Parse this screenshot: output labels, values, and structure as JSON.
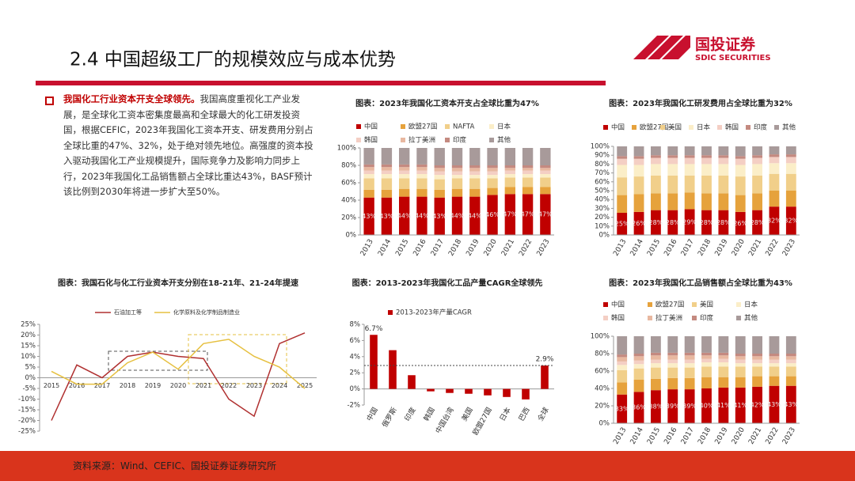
{
  "header": {
    "title": "2.4 中国超级工厂的规模效应与成本优势",
    "logo_cn": "国投证券",
    "logo_en": "SDIC SECURITIES"
  },
  "bullet": {
    "lead": "我国化工行业资本开支全球领先。",
    "text": "我国高度重视化工产业发展，是全球化工资本密集度最高和全球最大的化工研发投资国，根据CEFIC，2023年我国化工资本开支、研发费用分别占全球比重的47%、32%，处于绝对领先地位。高强度的资本投入驱动我国化工产业规模提升，国际竞争力及影响力同步上行，2023年我国化工品销售额占全球比重达43%，BASF预计该比例到2030年将进一步扩大至50%。"
  },
  "source": "资料来源：Wind、CEFIC、国投证券证券研究所",
  "chart_data": [
    {
      "type": "stacked_bar",
      "title": "图表：2023年我国化工资本开支占全球比重为47%",
      "categories": [
        "2013",
        "2014",
        "2015",
        "2016",
        "2017",
        "2018",
        "2019",
        "2020",
        "2021",
        "2022",
        "2023"
      ],
      "series": [
        {
          "name": "中国",
          "color": "#c00000",
          "values": [
            43,
            43,
            44,
            44,
            43,
            44,
            44,
            46,
            47,
            47,
            47
          ],
          "value_labels": [
            "43%",
            "43%",
            "44%",
            "44%",
            "43%",
            "44%",
            "44%",
            "46%",
            "47%",
            "47%",
            "47%"
          ]
        },
        {
          "name": "欧盟27国",
          "color": "#e6a23c",
          "values": [
            9,
            9,
            9,
            9,
            9,
            9,
            9,
            8,
            8,
            8,
            8
          ]
        },
        {
          "name": "NAFTA",
          "color": "#f1cf8a",
          "values": [
            13,
            13,
            12,
            12,
            12,
            12,
            12,
            11,
            11,
            11,
            11
          ]
        },
        {
          "name": "日本",
          "color": "#fbeec8",
          "values": [
            5,
            5,
            5,
            5,
            5,
            4,
            4,
            4,
            4,
            4,
            4
          ]
        },
        {
          "name": "韩国",
          "color": "#f4cfc4",
          "values": [
            4,
            4,
            4,
            4,
            4,
            4,
            4,
            4,
            4,
            4,
            4
          ]
        },
        {
          "name": "拉丁美洲",
          "color": "#e8b8a0",
          "values": [
            4,
            4,
            4,
            4,
            4,
            4,
            4,
            4,
            3,
            3,
            3
          ]
        },
        {
          "name": "印度",
          "color": "#c48a80",
          "values": [
            3,
            3,
            3,
            3,
            3,
            3,
            3,
            3,
            3,
            3,
            3
          ]
        },
        {
          "name": "其他",
          "color": "#a89a9a",
          "values": [
            19,
            19,
            19,
            19,
            20,
            20,
            20,
            20,
            20,
            20,
            20
          ]
        }
      ],
      "ylim": [
        0,
        100
      ],
      "yticks": [
        {
          "value": 0,
          "label": "0%"
        },
        {
          "value": 20,
          "label": "20%"
        },
        {
          "value": 40,
          "label": "40%"
        },
        {
          "value": 60,
          "label": "60%"
        },
        {
          "value": 80,
          "label": "80%"
        },
        {
          "value": 100,
          "label": "100%"
        }
      ]
    },
    {
      "type": "stacked_bar",
      "title": "图表：2023年我国化工研发费用占全球比重为32%",
      "categories": [
        "2013",
        "2014",
        "2015",
        "2016",
        "2017",
        "2018",
        "2019",
        "2020",
        "2021",
        "2022",
        "2023"
      ],
      "series": [
        {
          "name": "中国",
          "color": "#c00000",
          "values": [
            25,
            26,
            28,
            28,
            29,
            28,
            28,
            26,
            28,
            32,
            32
          ],
          "value_labels": [
            "25%",
            "26%",
            "28%",
            "28%",
            "29%",
            "28%",
            "28%",
            "26%",
            "28%",
            "32%",
            "32%"
          ]
        },
        {
          "name": "欧盟27国",
          "color": "#e6a23c",
          "values": [
            20,
            20,
            19,
            19,
            19,
            19,
            19,
            19,
            19,
            18,
            18
          ]
        },
        {
          "name": "美国",
          "color": "#f1cf8a",
          "values": [
            20,
            20,
            20,
            20,
            19,
            20,
            20,
            21,
            20,
            19,
            19
          ]
        },
        {
          "name": "日本",
          "color": "#fbeec8",
          "values": [
            14,
            13,
            13,
            13,
            13,
            13,
            13,
            13,
            13,
            12,
            12
          ]
        },
        {
          "name": "韩国",
          "color": "#f4cfc4",
          "values": [
            7,
            7,
            7,
            7,
            7,
            7,
            7,
            7,
            7,
            7,
            7
          ]
        },
        {
          "name": "印度",
          "color": "#c48a80",
          "values": [
            3,
            3,
            3,
            3,
            3,
            3,
            3,
            3,
            3,
            3,
            3
          ]
        },
        {
          "name": "其他",
          "color": "#a89a9a",
          "values": [
            11,
            11,
            10,
            10,
            10,
            10,
            10,
            11,
            10,
            9,
            9
          ]
        }
      ],
      "ylim": [
        0,
        100
      ],
      "yticks": [
        {
          "value": 0,
          "label": "0%"
        },
        {
          "value": 10,
          "label": "10%"
        },
        {
          "value": 20,
          "label": "20%"
        },
        {
          "value": 30,
          "label": "30%"
        },
        {
          "value": 40,
          "label": "40%"
        },
        {
          "value": 50,
          "label": "50%"
        },
        {
          "value": 60,
          "label": "60%"
        },
        {
          "value": 70,
          "label": "70%"
        },
        {
          "value": 80,
          "label": "80%"
        },
        {
          "value": 90,
          "label": "90%"
        },
        {
          "value": 100,
          "label": "100%"
        }
      ]
    },
    {
      "type": "line",
      "title": "图表：我国石化与化工行业资本开支分别在18-21年、21-24年提速",
      "categories": [
        "2015",
        "2016",
        "2017",
        "2018",
        "2019",
        "2020",
        "2021",
        "2022",
        "2023",
        "2024",
        "2025"
      ],
      "series": [
        {
          "name": "石油加工等",
          "color": "#b03030",
          "values": [
            -20,
            6,
            0,
            10,
            12,
            10,
            9,
            -10,
            -18,
            16,
            21
          ]
        },
        {
          "name": "化学原料及化学制品制造业",
          "color": "#e6c040",
          "values": [
            3,
            -3,
            -3,
            7,
            12,
            4,
            16,
            18,
            10,
            5,
            -5
          ]
        }
      ],
      "ylim": [
        -25,
        25
      ],
      "yticks": [
        {
          "value": -25,
          "label": "-25%"
        },
        {
          "value": -20,
          "label": "-20%"
        },
        {
          "value": -15,
          "label": "-15%"
        },
        {
          "value": -10,
          "label": "-10%"
        },
        {
          "value": -5,
          "label": "-5%"
        },
        {
          "value": 0,
          "label": "0%"
        },
        {
          "value": 5,
          "label": "5%"
        },
        {
          "value": 10,
          "label": "10%"
        },
        {
          "value": 15,
          "label": "15%"
        },
        {
          "value": 20,
          "label": "20%"
        },
        {
          "value": 25,
          "label": "25%"
        }
      ]
    },
    {
      "type": "bar",
      "title": "图表：2013-2023年我国化工品产量CAGR全球领先",
      "categories": [
        "中国",
        "俄罗斯",
        "印度",
        "韩国",
        "中国台湾",
        "美国",
        "欧盟27国",
        "日本",
        "巴西",
        "全球"
      ],
      "series": [
        {
          "name": "2013-2023年产量CAGR",
          "color": "#c00000",
          "values": [
            6.7,
            4.8,
            1.7,
            -0.3,
            -0.5,
            -0.6,
            -0.8,
            -1.0,
            -1.3,
            2.9
          ],
          "value_labels": [
            "6.7%",
            null,
            null,
            null,
            null,
            null,
            null,
            null,
            null,
            "2.9%"
          ]
        }
      ],
      "ylim": [
        -2,
        8
      ],
      "yticks": [
        {
          "value": -2,
          "label": "-2%"
        },
        {
          "value": 0,
          "label": "0%"
        },
        {
          "value": 2,
          "label": "2%"
        },
        {
          "value": 4,
          "label": "4%"
        },
        {
          "value": 6,
          "label": "6%"
        },
        {
          "value": 8,
          "label": "8%"
        }
      ]
    },
    {
      "type": "stacked_bar",
      "title": "图表：2023年我国化工品销售额占全球比重为43%",
      "categories": [
        "2013",
        "2014",
        "2015",
        "2016",
        "2017",
        "2018",
        "2019",
        "2020",
        "2021",
        "2022",
        "2023"
      ],
      "series": [
        {
          "name": "中国",
          "color": "#c00000",
          "values": [
            33,
            36,
            38,
            39,
            39,
            40,
            41,
            41,
            42,
            43,
            43
          ],
          "value_labels": [
            "33%",
            "36%",
            "38%",
            "39%",
            "39%",
            "40%",
            "41%",
            "41%",
            "42%",
            "43%",
            "43%"
          ]
        },
        {
          "name": "欧盟27国",
          "color": "#e6a23c",
          "values": [
            14,
            14,
            13,
            13,
            13,
            13,
            12,
            12,
            12,
            11,
            11
          ]
        },
        {
          "name": "美国",
          "color": "#f1cf8a",
          "values": [
            14,
            13,
            13,
            12,
            12,
            12,
            12,
            12,
            11,
            11,
            11
          ]
        },
        {
          "name": "日本",
          "color": "#fbeec8",
          "values": [
            6,
            5,
            5,
            5,
            5,
            5,
            5,
            4,
            4,
            4,
            4
          ]
        },
        {
          "name": "韩国",
          "color": "#f4cfc4",
          "values": [
            4,
            4,
            4,
            4,
            4,
            4,
            4,
            4,
            4,
            4,
            4
          ]
        },
        {
          "name": "拉丁美洲",
          "color": "#e8b8a0",
          "values": [
            5,
            5,
            5,
            5,
            5,
            4,
            4,
            4,
            4,
            4,
            4
          ]
        },
        {
          "name": "印度",
          "color": "#c48a80",
          "values": [
            3,
            3,
            3,
            3,
            3,
            3,
            3,
            3,
            3,
            3,
            3
          ]
        },
        {
          "name": "其他",
          "color": "#a89a9a",
          "values": [
            21,
            20,
            19,
            19,
            19,
            19,
            19,
            20,
            20,
            20,
            20
          ]
        }
      ],
      "ylim": [
        0,
        100
      ],
      "yticks": [
        {
          "value": 0,
          "label": "0%"
        },
        {
          "value": 20,
          "label": "20%"
        },
        {
          "value": 40,
          "label": "40%"
        },
        {
          "value": 60,
          "label": "60%"
        },
        {
          "value": 80,
          "label": "80%"
        },
        {
          "value": 100,
          "label": "100%"
        }
      ]
    }
  ]
}
